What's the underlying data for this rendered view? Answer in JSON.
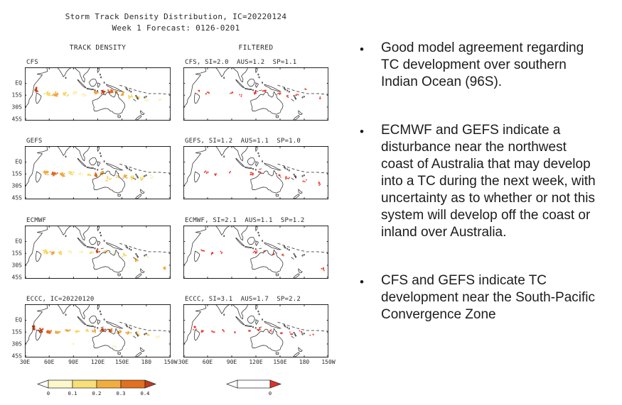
{
  "figure": {
    "title_line1": "Storm Track Density Distribution, IC=20220124",
    "title_line2": "Week 1 Forecast: 0126-0201",
    "col_header_left": "TRACK DENSITY",
    "col_header_right": "FILTERED",
    "axis": {
      "lat_labels": [
        "EQ",
        "15S",
        "30S",
        "45S"
      ],
      "lat_values": [
        0,
        -15,
        -30,
        -45
      ],
      "lon_labels": [
        "30E",
        "60E",
        "90E",
        "120E",
        "150E",
        "180",
        "150W"
      ]
    },
    "palette": {
      "pale": "#FAEFAF",
      "yellow": "#F5D763",
      "orange": "#EFA73A",
      "deep": "#E0661F",
      "red": "#CE3A12",
      "dot": "#E8392B"
    },
    "legend": {
      "density": {
        "tick_labels": [
          "0",
          "0.1",
          "0.2",
          "0.3",
          "0.4"
        ],
        "tick_positions": [
          0,
          1,
          2,
          3,
          4
        ],
        "segment_colors": [
          "#FEF7C9",
          "#F8DF76",
          "#F2AE3C",
          "#E2701E"
        ],
        "under_color": "#FFFFFF",
        "over_color": "#C43A18"
      },
      "filtered": {
        "tick_labels": [
          "0"
        ],
        "tick_positions": [
          1
        ],
        "segment_colors": [
          "#FFFFFF"
        ],
        "under_color": "#FFFFFF",
        "over_color": "#E03128"
      }
    },
    "panels": [
      {
        "id": "cfs",
        "left_label": "CFS",
        "right_label": "CFS, SI=2.0  AUS=1.2  SP=1.1",
        "density": [
          [
            44,
            -8,
            2.5,
            4,
            16,
            "red"
          ],
          [
            58,
            -13,
            4,
            3,
            18,
            "yellow"
          ],
          [
            68,
            -14,
            5,
            3,
            22,
            "orange"
          ],
          [
            80,
            -14,
            5,
            3,
            16,
            "yellow"
          ],
          [
            92,
            -12,
            4,
            2.5,
            10,
            "pale"
          ],
          [
            103,
            -15,
            3,
            2,
            7,
            "pale"
          ],
          [
            118,
            -12,
            3,
            2.5,
            12,
            "orange"
          ],
          [
            127,
            -11,
            3,
            2.5,
            14,
            "red"
          ],
          [
            135,
            -10,
            4,
            2.5,
            16,
            "deep"
          ],
          [
            143,
            -11,
            3,
            2,
            10,
            "orange"
          ],
          [
            151,
            -13,
            3,
            2.5,
            12,
            "orange"
          ],
          [
            160,
            -17,
            3.5,
            2.5,
            10,
            "yellow"
          ],
          [
            170,
            -18,
            4,
            3,
            9,
            "yellow"
          ],
          [
            181,
            -20,
            4,
            3,
            6,
            "pale"
          ],
          [
            196,
            -22,
            4,
            3,
            4,
            "pale"
          ]
        ],
        "filtered": [
          [
            50,
            -10,
            2,
            2,
            4
          ],
          [
            60,
            -13,
            3,
            2,
            6
          ],
          [
            90,
            -12,
            3,
            2,
            4
          ],
          [
            101,
            -15,
            2,
            2,
            3
          ],
          [
            120,
            -12,
            3,
            2.5,
            9
          ],
          [
            131,
            -10,
            3,
            2,
            7
          ],
          [
            149,
            -13,
            3,
            2,
            6
          ],
          [
            159,
            -16,
            3,
            2,
            5
          ],
          [
            170,
            -14,
            3,
            2,
            4
          ],
          [
            181,
            -7,
            2,
            2,
            3
          ],
          [
            199,
            -18,
            2,
            2,
            3
          ]
        ]
      },
      {
        "id": "gefs",
        "left_label": "GEFS",
        "right_label": "GEFS, SI=1.2  AUS=1.1  SP=1.0",
        "density": [
          [
            56,
            -13,
            4,
            3,
            20,
            "orange"
          ],
          [
            66,
            -15,
            5,
            3,
            26,
            "deep"
          ],
          [
            76,
            -16,
            4,
            3,
            18,
            "orange"
          ],
          [
            87,
            -14,
            4,
            2.5,
            12,
            "yellow"
          ],
          [
            99,
            -15,
            3,
            2,
            7,
            "pale"
          ],
          [
            110,
            -16,
            3,
            2,
            8,
            "yellow"
          ],
          [
            118,
            -16,
            3,
            2.5,
            18,
            "deep"
          ],
          [
            126,
            -14,
            3,
            2.5,
            12,
            "orange"
          ],
          [
            133,
            -21,
            4,
            3,
            10,
            "yellow"
          ],
          [
            144,
            -18,
            3,
            2.5,
            8,
            "yellow"
          ],
          [
            153,
            -18,
            3.5,
            2.5,
            14,
            "orange"
          ],
          [
            163,
            -20,
            4,
            3,
            12,
            "yellow"
          ],
          [
            174,
            -21,
            4,
            3,
            8,
            "yellow"
          ],
          [
            186,
            -19,
            4,
            3,
            5,
            "pale"
          ]
        ],
        "filtered": [
          [
            58,
            -13,
            3,
            2,
            6
          ],
          [
            70,
            -16,
            3,
            2,
            5
          ],
          [
            88,
            -14,
            2,
            2,
            3
          ],
          [
            115,
            -15,
            3,
            2.5,
            10
          ],
          [
            124,
            -13,
            3,
            2,
            6
          ],
          [
            149,
            -17,
            3,
            2.5,
            7
          ],
          [
            159,
            -20,
            3,
            2.5,
            7
          ],
          [
            169,
            -18,
            3,
            2,
            4
          ],
          [
            181,
            -24,
            3,
            2,
            4
          ],
          [
            199,
            -27,
            2.5,
            2.5,
            5
          ]
        ]
      },
      {
        "id": "ecmwf",
        "left_label": "ECMWF",
        "right_label": "ECMWF, SI=2.1  AUS=1.1  SP=1.2",
        "density": [
          [
            55,
            -13,
            4,
            3,
            18,
            "yellow"
          ],
          [
            64,
            -15,
            4,
            3,
            16,
            "orange"
          ],
          [
            74,
            -14,
            4,
            2.5,
            12,
            "yellow"
          ],
          [
            86,
            -13,
            4,
            2.5,
            8,
            "pale"
          ],
          [
            99,
            -14,
            3,
            2,
            5,
            "pale"
          ],
          [
            112,
            -14,
            3,
            2,
            6,
            "yellow"
          ],
          [
            120,
            -13,
            2.5,
            2,
            10,
            "red"
          ],
          [
            129,
            -13,
            3,
            2,
            7,
            "yellow"
          ],
          [
            141,
            -15,
            3,
            2.5,
            6,
            "pale"
          ],
          [
            153,
            -17,
            3,
            2.5,
            7,
            "yellow"
          ],
          [
            168,
            -24,
            3,
            2.5,
            8,
            "orange"
          ],
          [
            182,
            -20,
            3,
            2.5,
            4,
            "pale"
          ],
          [
            203,
            -34,
            3,
            2.5,
            6,
            "orange"
          ]
        ],
        "filtered": [
          [
            55,
            -12,
            3,
            2,
            6
          ],
          [
            65,
            -15,
            3,
            2,
            6
          ],
          [
            77,
            -14,
            2,
            2,
            3
          ],
          [
            119,
            -13,
            3,
            2,
            8
          ],
          [
            130,
            -12,
            2,
            2,
            3
          ],
          [
            143,
            -15,
            2.5,
            2,
            4
          ],
          [
            155,
            -17,
            3,
            2,
            4
          ],
          [
            203,
            -35,
            3,
            2.5,
            7
          ]
        ]
      },
      {
        "id": "eccc",
        "left_label": "ECCC, IC=20220120",
        "right_label": "ECCC, SI=3.1  AUS=1.7  SP=2.2",
        "density": [
          [
            41,
            -9,
            2,
            4,
            18,
            "red"
          ],
          [
            50,
            -13,
            4,
            3,
            20,
            "red"
          ],
          [
            60,
            -15,
            4,
            3,
            20,
            "deep"
          ],
          [
            70,
            -15,
            4,
            3,
            18,
            "orange"
          ],
          [
            82,
            -13,
            4,
            2.5,
            12,
            "orange"
          ],
          [
            95,
            -14,
            3.5,
            2.5,
            9,
            "yellow"
          ],
          [
            107,
            -13,
            3,
            2,
            8,
            "yellow"
          ],
          [
            116,
            -13,
            3,
            2.5,
            12,
            "orange"
          ],
          [
            126,
            -12,
            3.5,
            2.5,
            18,
            "red"
          ],
          [
            136,
            -13,
            3,
            2.5,
            12,
            "deep"
          ],
          [
            147,
            -15,
            3.5,
            2.5,
            14,
            "orange"
          ],
          [
            158,
            -16,
            3.5,
            2.5,
            12,
            "orange"
          ],
          [
            169,
            -17,
            4,
            3,
            9,
            "yellow"
          ],
          [
            181,
            -19,
            4,
            3,
            7,
            "yellow"
          ],
          [
            194,
            -21,
            4,
            3,
            5,
            "pale"
          ],
          [
            90,
            -29,
            3,
            2,
            3,
            "pale"
          ],
          [
            140,
            -33,
            3,
            2,
            3,
            "pale"
          ]
        ],
        "filtered": [
          [
            44,
            -10,
            2.5,
            3,
            7
          ],
          [
            54,
            -14,
            3,
            2,
            6
          ],
          [
            66,
            -15,
            3,
            2,
            5
          ],
          [
            79,
            -13,
            3,
            2,
            4
          ],
          [
            94,
            -14,
            2,
            2,
            3
          ],
          [
            112,
            -13,
            3,
            2,
            5
          ],
          [
            124,
            -12,
            3,
            2.5,
            8
          ],
          [
            138,
            -14,
            3,
            2,
            5
          ],
          [
            151,
            -16,
            3,
            2,
            6
          ],
          [
            163,
            -17,
            3,
            2,
            5
          ],
          [
            176,
            -14,
            3,
            2,
            4
          ],
          [
            189,
            -19,
            2.5,
            2,
            3
          ]
        ]
      }
    ]
  },
  "notes": {
    "bullet_char": "•",
    "bullets": [
      "Good model agreement regarding TC development over southern Indian Ocean (96S).",
      "ECMWF and GEFS indicate a disturbance near the northwest coast of Australia that may develop into a TC during the next week, with uncertainty as to whether or not this system will develop off the coast or inland over Australia.",
      "CFS and GEFS indicate TC development near the South-Pacific Convergence Zone"
    ]
  }
}
